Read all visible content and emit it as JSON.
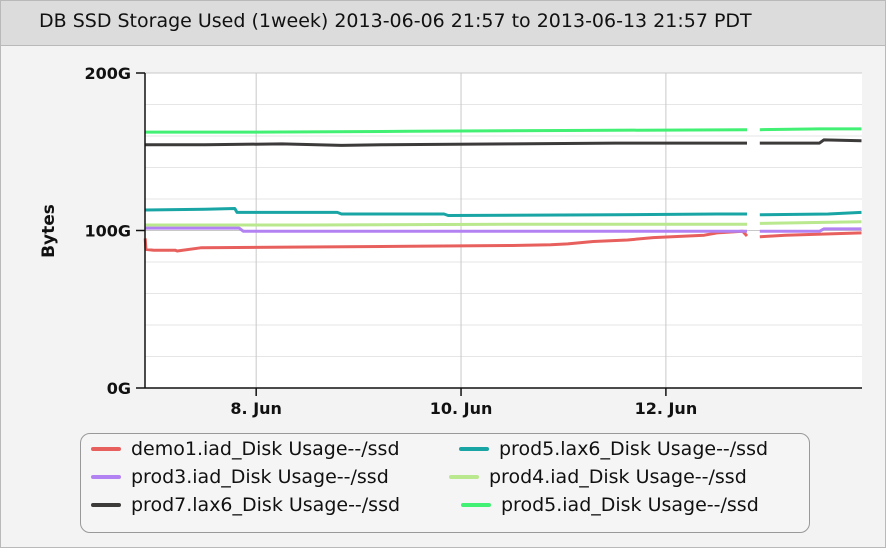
{
  "title": "DB SSD Storage Used (1week) 2013-06-06 21:57 to 2013-06-13 21:57 PDT",
  "chart_data": {
    "type": "line",
    "ylabel": "Bytes",
    "xlabel": "",
    "ylim": [
      0,
      200
    ],
    "xlim": [
      "2013-06-06 21:57",
      "2013-06-13 21:57"
    ],
    "y_ticks": [
      "0G",
      "100G",
      "200G"
    ],
    "x_ticks": [
      {
        "date": "2013-06-08",
        "label": "8. Jun"
      },
      {
        "date": "2013-06-10",
        "label": "10. Jun"
      },
      {
        "date": "2013-06-12",
        "label": "12. Jun"
      }
    ],
    "grid": true,
    "legend_position": "bottom",
    "series": [
      {
        "name": "demo1.iad_Disk Usage--/ssd",
        "color": "#e8605e",
        "points": [
          [
            "2013-06-06 22:00",
            95
          ],
          [
            "2013-06-06 22:10",
            88
          ],
          [
            "2013-06-07 00:00",
            87.5
          ],
          [
            "2013-06-07 05:00",
            87.5
          ],
          [
            "2013-06-07 05:30",
            87
          ],
          [
            "2013-06-07 11:00",
            89
          ],
          [
            "2013-06-08 12:00",
            89.5
          ],
          [
            "2013-06-09 12:00",
            90
          ],
          [
            "2013-06-10 12:00",
            90.5
          ],
          [
            "2013-06-10 21:00",
            91
          ],
          [
            "2013-06-11 01:00",
            91.5
          ],
          [
            "2013-06-11 07:00",
            93
          ],
          [
            "2013-06-11 15:00",
            94
          ],
          [
            "2013-06-11 21:00",
            95.5
          ],
          [
            "2013-06-12 09:00",
            97
          ],
          [
            "2013-06-12 12:00",
            98.5
          ],
          [
            "2013-06-12 18:00",
            99.5
          ],
          [
            "2013-06-12 19:00",
            96.5
          ],
          [
            "2013-06-12 22:00",
            96
          ],
          [
            "2013-06-13 04:00",
            97
          ],
          [
            "2013-06-13 21:50",
            98.5
          ]
        ]
      },
      {
        "name": "prod5.lax6_Disk Usage--/ssd",
        "color": "#1aa5a5",
        "points": [
          [
            "2013-06-06 22:00",
            113
          ],
          [
            "2013-06-07 12:00",
            113.5
          ],
          [
            "2013-06-07 19:00",
            114
          ],
          [
            "2013-06-07 19:30",
            111.5
          ],
          [
            "2013-06-08 19:00",
            111.5
          ],
          [
            "2013-06-08 20:00",
            110.5
          ],
          [
            "2013-06-09 20:00",
            110.5
          ],
          [
            "2013-06-09 21:00",
            109.5
          ],
          [
            "2013-06-11 12:00",
            110
          ],
          [
            "2013-06-12 12:00",
            110.5
          ],
          [
            "2013-06-12 19:00",
            110.5
          ],
          [
            "2013-06-12 22:00",
            110
          ],
          [
            "2013-06-13 14:00",
            110.5
          ],
          [
            "2013-06-13 21:50",
            111.5
          ]
        ]
      },
      {
        "name": "prod3.iad_Disk Usage--/ssd",
        "color": "#b382f2",
        "points": [
          [
            "2013-06-06 22:00",
            101.5
          ],
          [
            "2013-06-07 20:00",
            101.5
          ],
          [
            "2013-06-07 21:00",
            99.5
          ],
          [
            "2013-06-12 19:00",
            99.5
          ],
          [
            "2013-06-12 22:00",
            99.5
          ],
          [
            "2013-06-13 12:00",
            99.5
          ],
          [
            "2013-06-13 13:00",
            101
          ],
          [
            "2013-06-13 21:50",
            101
          ]
        ]
      },
      {
        "name": "prod4.iad_Disk Usage--/ssd",
        "color": "#b9e88e",
        "points": [
          [
            "2013-06-06 22:00",
            103.5
          ],
          [
            "2013-06-08 12:00",
            103.5
          ],
          [
            "2013-06-10 12:00",
            104
          ],
          [
            "2013-06-12 19:00",
            104
          ],
          [
            "2013-06-12 22:00",
            104.5
          ],
          [
            "2013-06-13 21:50",
            105.5
          ]
        ]
      },
      {
        "name": "prod7.lax6_Disk Usage--/ssd",
        "color": "#3d3a3a",
        "points": [
          [
            "2013-06-06 22:00",
            154.5
          ],
          [
            "2013-06-07 12:00",
            154.5
          ],
          [
            "2013-06-08 06:00",
            155
          ],
          [
            "2013-06-08 20:00",
            154
          ],
          [
            "2013-06-09 06:00",
            154.5
          ],
          [
            "2013-06-10 12:00",
            155
          ],
          [
            "2013-06-11 12:00",
            155.5
          ],
          [
            "2013-06-12 19:00",
            155.5
          ],
          [
            "2013-06-12 22:00",
            155.5
          ],
          [
            "2013-06-13 12:00",
            155.5
          ],
          [
            "2013-06-13 13:00",
            157.5
          ],
          [
            "2013-06-13 21:50",
            157
          ]
        ]
      },
      {
        "name": "prod5.iad_Disk Usage--/ssd",
        "color": "#42f073",
        "points": [
          [
            "2013-06-06 22:00",
            162.5
          ],
          [
            "2013-06-08 00:00",
            162.5
          ],
          [
            "2013-06-09 12:00",
            163
          ],
          [
            "2013-06-11 00:00",
            163.5
          ],
          [
            "2013-06-12 19:00",
            164
          ],
          [
            "2013-06-12 22:00",
            164
          ],
          [
            "2013-06-13 12:00",
            164.5
          ],
          [
            "2013-06-13 21:50",
            164.5
          ]
        ]
      }
    ]
  }
}
